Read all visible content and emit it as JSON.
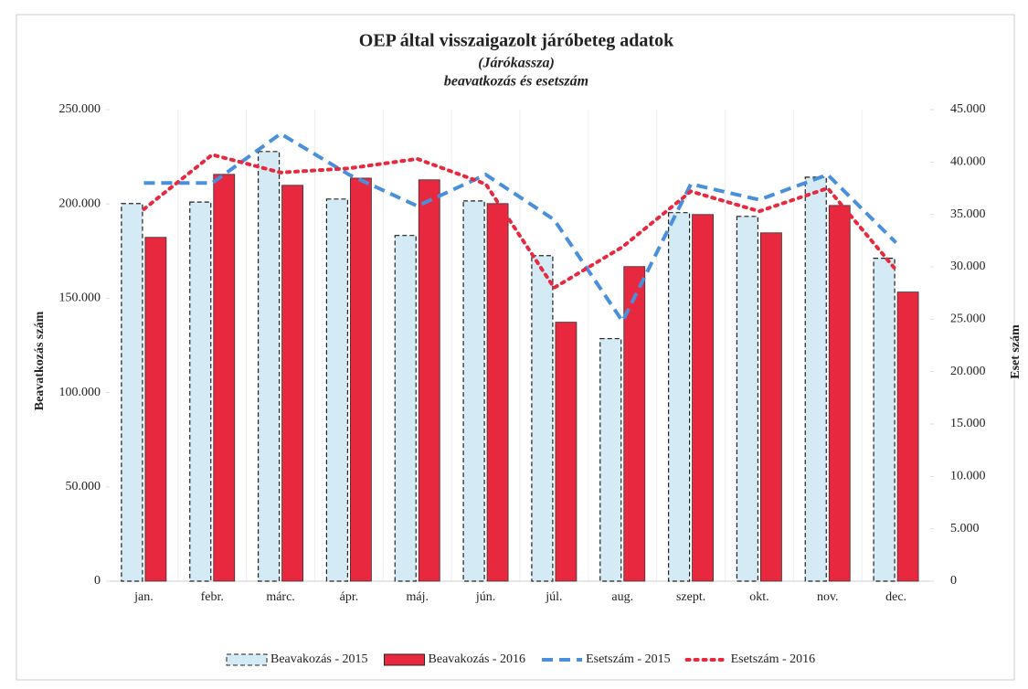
{
  "chart_data": {
    "type": "bar",
    "title": "OEP által visszaigazolt járóbeteg adatok",
    "subtitle": "(Járókassza)",
    "subtitle2": "beavatkozás és esetszám",
    "ylabel": "Beavatkozás szám",
    "y2label": "Eset szám",
    "categories": [
      "jan.",
      "febr.",
      "márc.",
      "ápr.",
      "máj.",
      "jún.",
      "júl.",
      "aug.",
      "szept.",
      "okt.",
      "nov.",
      "dec."
    ],
    "series": [
      {
        "name": "Beavakozás - 2015",
        "type": "bar",
        "color": "#d4eaf4",
        "dash": "dashed",
        "values": [
          200200,
          201000,
          227800,
          202600,
          183300,
          201600,
          172600,
          128600,
          195400,
          193400,
          214200,
          171200
        ]
      },
      {
        "name": "Beavakozás - 2016",
        "type": "bar",
        "color": "#e8283f",
        "values": [
          182300,
          215700,
          209900,
          213700,
          212800,
          200200,
          137300,
          166800,
          194400,
          184700,
          199200,
          153300
        ]
      },
      {
        "name": "Esetszám - 2015",
        "type": "line",
        "axis": "y2",
        "color": "#4a8fdc",
        "dash": "dashed",
        "values": [
          38000,
          38000,
          42700,
          38800,
          35800,
          38800,
          34500,
          24800,
          37900,
          36400,
          38800,
          32300
        ]
      },
      {
        "name": "Esetszám - 2016",
        "type": "line",
        "axis": "y2",
        "color": "#e8283f",
        "dash": "dotted",
        "values": [
          35500,
          40700,
          39000,
          39400,
          40300,
          37900,
          28000,
          31900,
          37200,
          35300,
          37500,
          29700
        ]
      }
    ],
    "ylim": [
      0,
      250000
    ],
    "yticks": [
      0,
      {
        "value": 50000,
        "label": "50.000"
      },
      {
        "value": 100000,
        "label": "100.000"
      },
      {
        "value": 150000,
        "label": "150.000"
      },
      {
        "value": 200000,
        "label": "200.000"
      },
      {
        "value": 250000,
        "label": "250.000"
      }
    ],
    "y2lim": [
      0,
      45000
    ],
    "y2ticks": [
      0,
      {
        "value": 5000,
        "label": "5.000"
      },
      {
        "value": 10000,
        "label": "10.000"
      },
      {
        "value": 15000,
        "label": "15.000"
      },
      {
        "value": 20000,
        "label": "20.000"
      },
      {
        "value": 25000,
        "label": "25.000"
      },
      {
        "value": 30000,
        "label": "30.000"
      },
      {
        "value": 35000,
        "label": "35.000"
      },
      {
        "value": 40000,
        "label": "40.000"
      },
      {
        "value": 45000,
        "label": "45.000"
      }
    ],
    "legend": "bottom"
  }
}
